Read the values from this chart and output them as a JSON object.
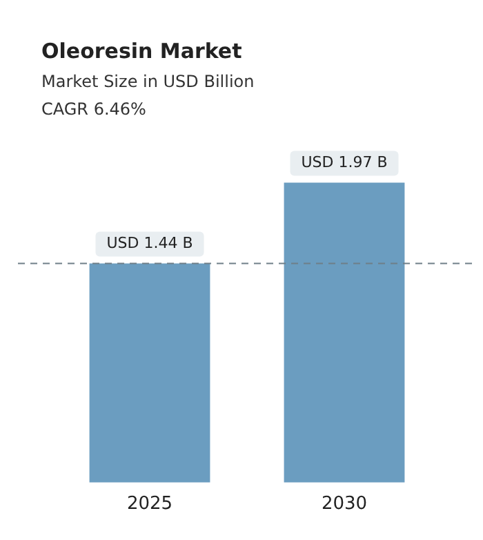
{
  "chart_data": {
    "type": "bar",
    "title": "Oleoresin Market",
    "subtitle": "Market Size in USD Billion",
    "annotations": [
      "CAGR 6.46%"
    ],
    "categories": [
      "2025",
      "2030"
    ],
    "values": [
      1.44,
      1.97
    ],
    "color": "#6b9dc0",
    "value_labels": [
      "USD 1.44 B",
      "USD 1.97 B"
    ],
    "relative": false,
    "ref_lines": [
      {
        "axis": "y",
        "value": 1.44,
        "color": "#6f7f88",
        "line_style": "dashed"
      }
    ],
    "grid": false,
    "legend": false
  }
}
